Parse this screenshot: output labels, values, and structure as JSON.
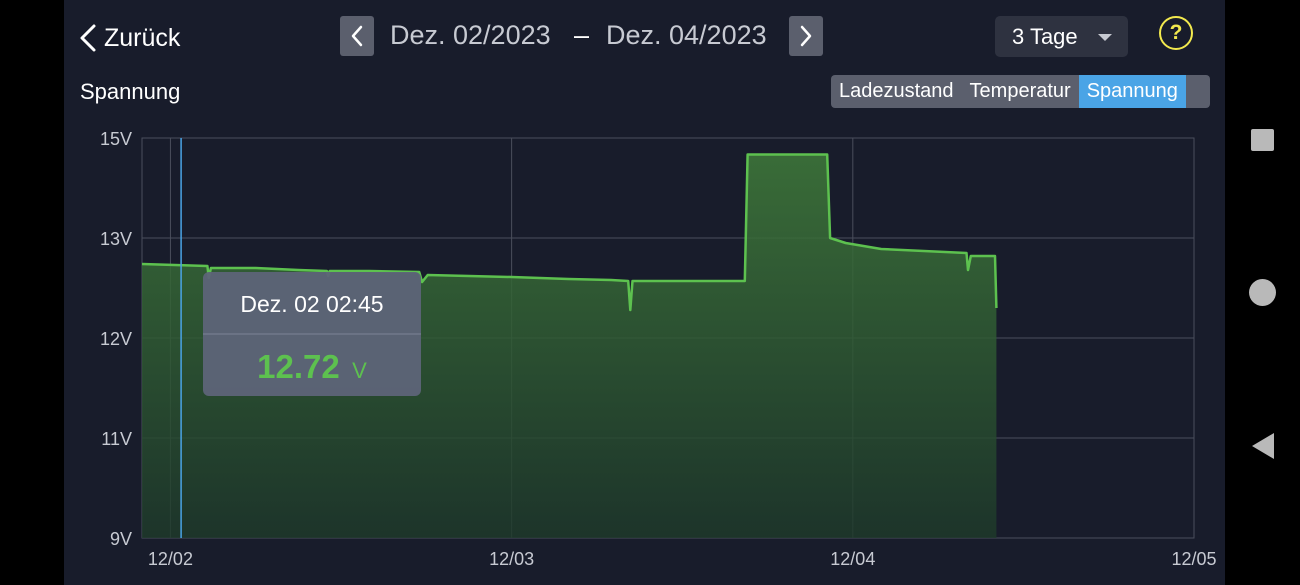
{
  "header": {
    "back_label": "Zurück",
    "date_from": "Dez. 02/2023",
    "date_separator": "–",
    "date_to": "Dez. 04/2023",
    "range_selected": "3 Tage",
    "help_label": "?"
  },
  "chart_title": "Spannung",
  "tabs": [
    {
      "label": "Ladezustand",
      "active": false
    },
    {
      "label": "Temperatur",
      "active": false
    },
    {
      "label": "Spannung",
      "active": true
    }
  ],
  "tooltip": {
    "time": "Dez. 02 02:45",
    "value": "12.72",
    "unit": "V"
  },
  "colors": {
    "line": "#5dc14f",
    "accent": "#4aa4e6",
    "help": "#f2e94e"
  },
  "chart_data": {
    "type": "area",
    "title": "",
    "xlabel": "",
    "ylabel": "",
    "y_ticks": [
      {
        "value": 9,
        "label": "9V"
      },
      {
        "value": 11,
        "label": "11V"
      },
      {
        "value": 12,
        "label": "12V"
      },
      {
        "value": 13,
        "label": "13V"
      },
      {
        "value": 15,
        "label": "15V"
      }
    ],
    "x_ticks": [
      {
        "value": 0,
        "label": "12/02"
      },
      {
        "value": 24,
        "label": "12/03"
      },
      {
        "value": 48,
        "label": "12/04"
      },
      {
        "value": 72,
        "label": "12/05"
      }
    ],
    "grid": true,
    "x_unit": "hours since Dec 02 00:00",
    "xlim": [
      -2,
      72
    ],
    "series": [
      {
        "values": [
          [
            -2,
            12.74
          ],
          [
            2.6,
            12.72
          ],
          [
            2.7,
            12.6
          ],
          [
            2.85,
            12.7
          ],
          [
            6,
            12.7
          ],
          [
            9,
            12.68
          ],
          [
            11,
            12.67
          ],
          [
            11.1,
            12.62
          ],
          [
            11.2,
            12.67
          ],
          [
            14,
            12.67
          ],
          [
            17.5,
            12.66
          ],
          [
            17.7,
            12.56
          ],
          [
            18.1,
            12.63
          ],
          [
            21,
            12.62
          ],
          [
            24,
            12.61
          ],
          [
            28,
            12.59
          ],
          [
            31,
            12.58
          ],
          [
            32.2,
            12.57
          ],
          [
            32.35,
            12.28
          ],
          [
            32.5,
            12.57
          ],
          [
            36,
            12.57
          ],
          [
            40.4,
            12.57
          ],
          [
            40.6,
            14.67
          ],
          [
            44,
            14.67
          ],
          [
            46.2,
            14.67
          ],
          [
            46.4,
            13.0
          ],
          [
            47.5,
            12.95
          ],
          [
            50,
            12.89
          ],
          [
            53,
            12.87
          ],
          [
            56,
            12.85
          ],
          [
            56.1,
            12.68
          ],
          [
            56.3,
            12.82
          ],
          [
            58,
            12.82
          ],
          [
            58.1,
            12.3
          ]
        ]
      }
    ],
    "cursor_x": 0.75
  }
}
